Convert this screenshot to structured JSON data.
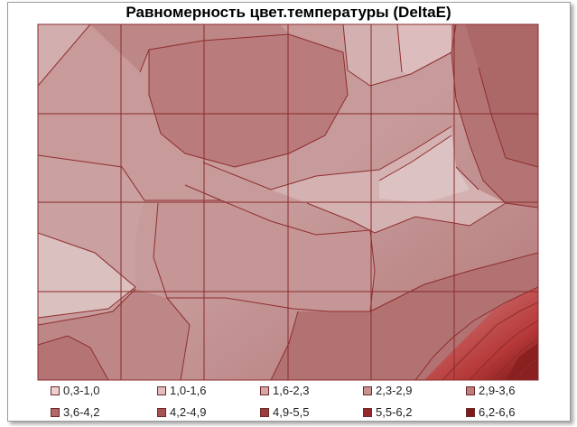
{
  "window": {
    "title": "Равномерность цвет.температуры (DeltaE)"
  },
  "chart_data": {
    "type": "heatmap",
    "title": "Равномерность цвет.температуры (DeltaE)",
    "grid": true,
    "rows": 4,
    "cols": 6,
    "legend_position": "bottom",
    "legend": [
      {
        "label": "0,3-1,0",
        "color": "#ebd1d1"
      },
      {
        "label": "1,0-1,6",
        "color": "#e2bcbc"
      },
      {
        "label": "1,6-2,3",
        "color": "#d6a7a7"
      },
      {
        "label": "2,3-2,9",
        "color": "#c99292"
      },
      {
        "label": "2,9-3,6",
        "color": "#bc7e7e"
      },
      {
        "label": "3,6-4,2",
        "color": "#b06868"
      },
      {
        "label": "4,2-4,9",
        "color": "#a55353"
      },
      {
        "label": "4,9-5,5",
        "color": "#9b3d3d"
      },
      {
        "label": "5,5-6,2",
        "color": "#922a2a"
      },
      {
        "label": "6,2-6,6",
        "color": "#7f1a1a"
      }
    ]
  }
}
